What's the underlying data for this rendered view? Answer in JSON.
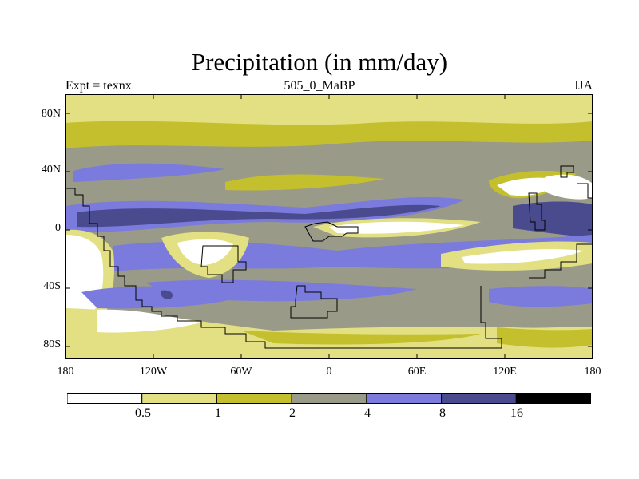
{
  "title": "Precipitation (in mm/day)",
  "subtitle_left": "Expt = texnx",
  "subtitle_center": "505_0_MaBP",
  "subtitle_right": "JJA",
  "y_ticks": [
    "80N",
    "40N",
    "0",
    "40S",
    "80S"
  ],
  "x_ticks": [
    "180",
    "120W",
    "60W",
    "0",
    "60E",
    "120E",
    "180"
  ],
  "colorbar": {
    "levels": [
      "0.5",
      "1",
      "2",
      "4",
      "8",
      "16"
    ],
    "colors": [
      "#ffffff",
      "#e2e083",
      "#c4c02d",
      "#9a9a88",
      "#7b7bde",
      "#4a4a8e",
      "#000000"
    ]
  }
}
